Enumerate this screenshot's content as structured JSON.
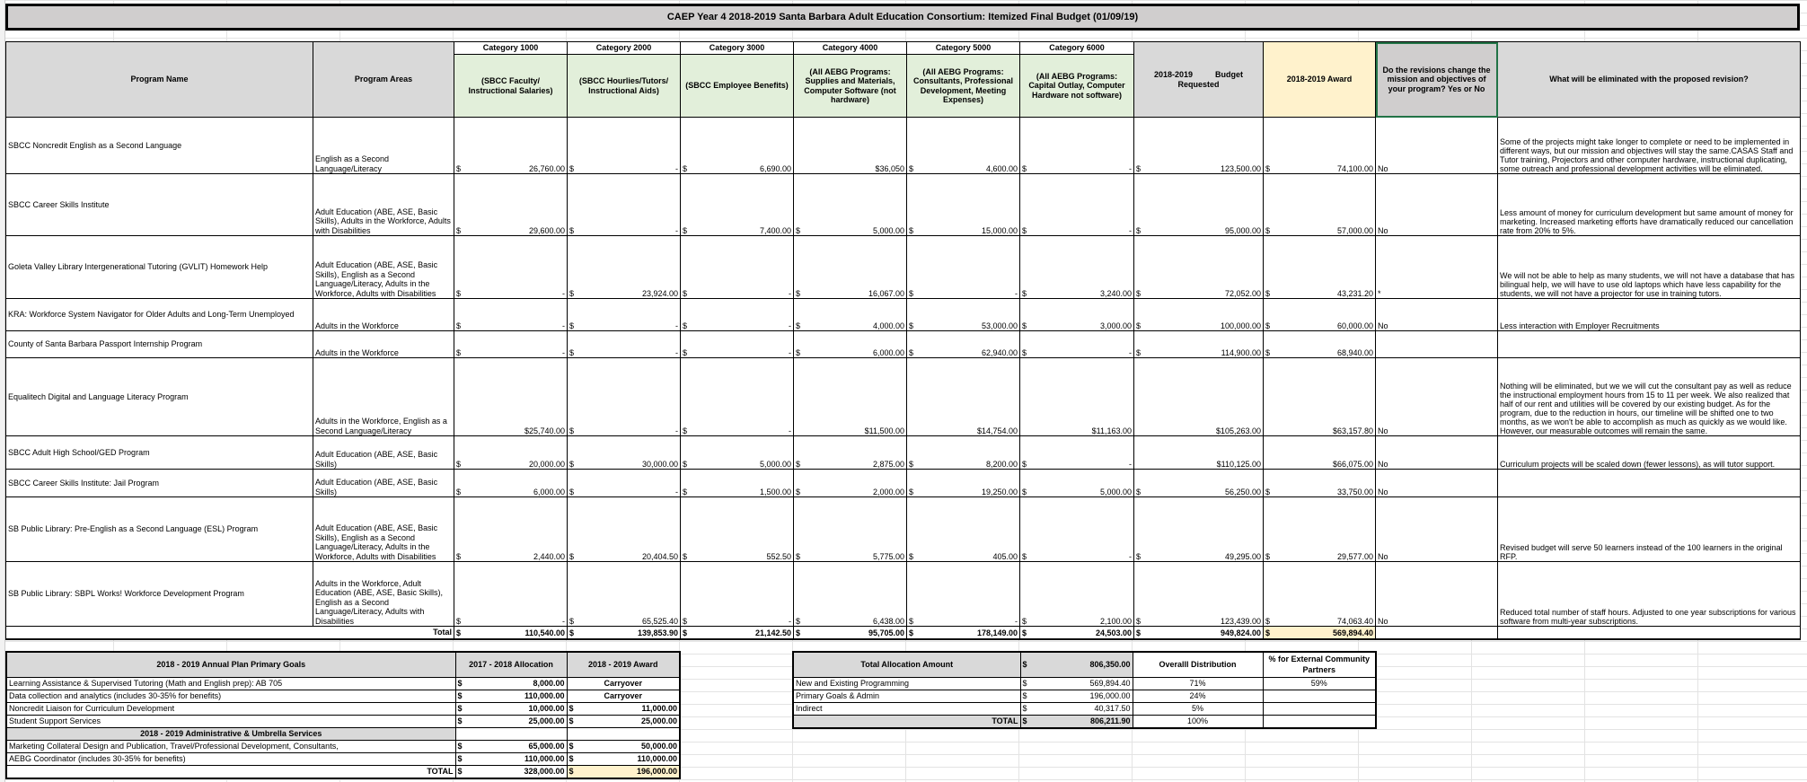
{
  "title": "CAEP Year 4  2018-2019 Santa Barbara Adult Education Consortium:  Itemized Final Budget (01/09/19)",
  "headers": {
    "program_name": "Program Name",
    "program_areas": "Program Areas",
    "categories": [
      {
        "cat": "Category 1000",
        "desc": "(SBCC Faculty/ Instructional Salaries)"
      },
      {
        "cat": "Category 2000",
        "desc": "(SBCC Hourlies/Tutors/ Instructional Aids)"
      },
      {
        "cat": "Category 3000",
        "desc": "(SBCC Employee Benefits)"
      },
      {
        "cat": "Category 4000",
        "desc": "(All AEBG Programs: Supplies and Materials, Computer Software (not hardware)"
      },
      {
        "cat": "Category 5000",
        "desc": "(All AEBG Programs: Consultants, Professional Development, Meeting Expenses)"
      },
      {
        "cat": "Category 6000",
        "desc": "(All AEBG Programs: Capital Outlay, Computer Hardware not software)"
      }
    ],
    "budget": "2018-2019          Budget Requested",
    "award": "2018-2019 Award",
    "revisions": "Do the revisions change the mission and objectives of your program? Yes or No",
    "eliminated": "What will be eliminated with the proposed revision?"
  },
  "rows": [
    {
      "name": "SBCC Noncredit English as a Second Language",
      "areas": "English as a Second Language/Literacy",
      "cells": [
        [
          "$",
          "26,760.00"
        ],
        [
          "$",
          "-"
        ],
        [
          "$",
          "6,690.00"
        ],
        [
          "",
          "$36,050"
        ],
        [
          "$",
          "4,600.00"
        ],
        [
          "$",
          "-"
        ],
        [
          "$",
          "123,500.00"
        ],
        [
          "$",
          "74,100.00"
        ]
      ],
      "rev": "No",
      "elim": "Some of the projects might take longer to complete or need to be implemented in different ways, but our mission and objectives will stay the same.CASAS Staff and Tutor training, Projectors and other computer hardware, instructional duplicating, some outreach and professional development activities will be eliminated."
    },
    {
      "name": "SBCC Career Skills Institute",
      "areas": "Adult Education (ABE, ASE, Basic Skills), Adults in the Workforce, Adults with Disabilities",
      "cells": [
        [
          "$",
          "29,600.00"
        ],
        [
          "$",
          "-"
        ],
        [
          "$",
          "7,400.00"
        ],
        [
          "$",
          "5,000.00"
        ],
        [
          "$",
          "15,000.00"
        ],
        [
          "$",
          "-"
        ],
        [
          "$",
          "95,000.00"
        ],
        [
          "$",
          "57,000.00"
        ]
      ],
      "rev": "No",
      "elim": "Less amount of money for curriculum development but same amount of money for marketing. Increased marketing efforts have dramatically reduced our cancellation rate from 20% to 5%."
    },
    {
      "name": "Goleta Valley Library Intergenerational Tutoring (GVLIT) Homework Help",
      "areas": "Adult Education (ABE, ASE, Basic Skills), English as a Second Language/Literacy, Adults in the Workforce, Adults with Disabilities",
      "cells": [
        [
          "$",
          "-"
        ],
        [
          "$",
          "23,924.00"
        ],
        [
          "$",
          "-"
        ],
        [
          "$",
          "16,067.00"
        ],
        [
          "$",
          "-"
        ],
        [
          "$",
          "3,240.00"
        ],
        [
          "$",
          "72,052.00"
        ],
        [
          "$",
          "43,231.20"
        ]
      ],
      "rev": "*",
      "elim": "We will not be able to help as many students, we will not have a database that has bilingual help, we will have to use old laptops which have less capability for the students, we will not have a projector for use in training tutors."
    },
    {
      "name": "KRA: Workforce System Navigator for Older Adults and Long-Term Unemployed",
      "areas": "Adults in the Workforce",
      "cells": [
        [
          "$",
          "-"
        ],
        [
          "$",
          "-"
        ],
        [
          "$",
          "-"
        ],
        [
          "$",
          "4,000.00"
        ],
        [
          "$",
          "53,000.00"
        ],
        [
          "$",
          "3,000.00"
        ],
        [
          "$",
          "100,000.00"
        ],
        [
          "$",
          "60,000.00"
        ]
      ],
      "rev": "No",
      "elim": "Less interaction with Employer Recruitments"
    },
    {
      "name": "County of Santa Barbara Passport Internship Program",
      "areas": "Adults in the Workforce",
      "cells": [
        [
          "$",
          "-"
        ],
        [
          "$",
          "-"
        ],
        [
          "$",
          "-"
        ],
        [
          "$",
          "6,000.00"
        ],
        [
          "$",
          "62,940.00"
        ],
        [
          "$",
          "-"
        ],
        [
          "$",
          "114,900.00"
        ],
        [
          "$",
          "68,940.00"
        ]
      ],
      "rev": "",
      "elim": ""
    },
    {
      "name": "Equalitech Digital and Language Literacy Program",
      "areas": "Adults in the Workforce, English as a Second Language/Literacy",
      "cells": [
        [
          "",
          "$25,740.00"
        ],
        [
          "$",
          "-"
        ],
        [
          "$",
          "-"
        ],
        [
          "",
          "$11,500.00"
        ],
        [
          "",
          "$14,754.00"
        ],
        [
          "",
          "$11,163.00"
        ],
        [
          "",
          "$105,263.00"
        ],
        [
          "",
          "$63,157.80"
        ]
      ],
      "rev": "No",
      "elim": "Nothing will be eliminated, but we we will cut the consultant pay as well as reduce the instructional employment hours from 15 to 11 per week. We also realized that half of our rent and utilities will be covered by our existing budget. As for the program, due to the reduction in hours, our timeline will be shifted one to two months, as we won't be able to accomplish as much as quickly as we would like. However, our measurable outcomes will remain the same."
    },
    {
      "name": "SBCC Adult High School/GED Program",
      "areas": "Adult Education (ABE, ASE, Basic Skills)",
      "cells": [
        [
          "$",
          "20,000.00"
        ],
        [
          "$",
          "30,000.00"
        ],
        [
          "$",
          "5,000.00"
        ],
        [
          "$",
          "2,875.00"
        ],
        [
          "$",
          "8,200.00"
        ],
        [
          "$",
          "-"
        ],
        [
          "",
          "$110,125.00"
        ],
        [
          "",
          "$66,075.00"
        ]
      ],
      "rev": "No",
      "elim": "Curriculum projects will be scaled down (fewer lessons), as will tutor support."
    },
    {
      "name": "SBCC Career Skills Institute: Jail Program",
      "areas": "Adult Education (ABE, ASE, Basic Skills)",
      "cells": [
        [
          "$",
          "6,000.00"
        ],
        [
          "$",
          "-"
        ],
        [
          "$",
          "1,500.00"
        ],
        [
          "$",
          "2,000.00"
        ],
        [
          "$",
          "19,250.00"
        ],
        [
          "$",
          "5,000.00"
        ],
        [
          "$",
          "56,250.00"
        ],
        [
          "$",
          "33,750.00"
        ]
      ],
      "rev": "No",
      "elim": ""
    },
    {
      "name": "SB Public Library: Pre-English as a Second Language (ESL) Program",
      "areas": "Adult Education (ABE, ASE, Basic Skills), English as a Second Language/Literacy, Adults in the Workforce, Adults with Disabilities",
      "cells": [
        [
          "$",
          "2,440.00"
        ],
        [
          "$",
          "20,404.50"
        ],
        [
          "$",
          "552.50"
        ],
        [
          "$",
          "5,775.00"
        ],
        [
          "$",
          "405.00"
        ],
        [
          "$",
          "-"
        ],
        [
          "$",
          "49,295.00"
        ],
        [
          "$",
          "29,577.00"
        ]
      ],
      "rev": "No",
      "elim": "Revised budget will serve 50 learners instead of the 100 learners in the original RFP."
    },
    {
      "name": "SB Public Library: SBPL Works! Workforce Development Program",
      "areas": "Adults in the Workforce, Adult Education (ABE, ASE, Basic Skills), English as a Second Language/Literacy, Adults with Disabilities",
      "cells": [
        [
          "$",
          "-"
        ],
        [
          "$",
          "65,525.40"
        ],
        [
          "$",
          "-"
        ],
        [
          "$",
          "6,438.00"
        ],
        [
          "$",
          "-"
        ],
        [
          "$",
          "2,100.00"
        ],
        [
          "$",
          "123,439.00"
        ],
        [
          "$",
          "74,063.40"
        ]
      ],
      "rev": "No",
      "elim": "Reduced total number of staff hours. Adjusted to one year subscriptions for various software from multi-year subscriptions."
    }
  ],
  "total": {
    "label": "Total",
    "cells": [
      [
        "$",
        "110,540.00"
      ],
      [
        "$",
        "139,853.90"
      ],
      [
        "$",
        "21,142.50"
      ],
      [
        "$",
        "95,705.00"
      ],
      [
        "$",
        "178,149.00"
      ],
      [
        "$",
        "24,503.00"
      ],
      [
        "$",
        "949,824.00"
      ],
      [
        "$",
        "569,894.40"
      ]
    ]
  },
  "goals": {
    "header": "2018 - 2019 Annual Plan Primary Goals",
    "col_alloc": "2017 - 2018 Allocation",
    "col_award": "2018 - 2019 Award",
    "items": [
      {
        "label": "Learning Assistance & Supervised Tutoring (Math and English prep): AB 705",
        "alloc": "8,000.00",
        "award_cur": "",
        "award": "Carryover"
      },
      {
        "label": "Data collection and analytics  (includes 30-35% for benefits)",
        "alloc": "110,000.00",
        "award_cur": "",
        "award": "Carryover"
      },
      {
        "label": "Noncredit Liaison for Curriculum Development",
        "alloc": "10,000.00",
        "award_cur": "$",
        "award": "11,000.00"
      },
      {
        "label": "Student Support Services",
        "alloc": "25,000.00",
        "award_cur": "$",
        "award": "25,000.00"
      }
    ],
    "admin_header": "2018 - 2019 Administrative & Umbrella Services",
    "admin_items": [
      {
        "label": "Marketing Collateral Design and Publication, Travel/Professional Development, Consultants,",
        "alloc": "65,000.00",
        "award_cur": "$",
        "award": "50,000.00"
      },
      {
        "label": "AEBG Coordinator (includes 30-35% for benefits)",
        "alloc": "110,000.00",
        "award_cur": "$",
        "award": "110,000.00"
      }
    ],
    "total_label": "TOTAL",
    "total_alloc": "328,000.00",
    "total_award": "196,000.00"
  },
  "allocation": {
    "header": "Total Allocation Amount",
    "header_amount": "806,350.00",
    "col_dist": "Overalll Distribution",
    "col_ext": "% for External Community Partners",
    "items": [
      {
        "label": "New and Existing Programming",
        "amount": "569,894.40",
        "dist": "71%",
        "ext": "59%"
      },
      {
        "label": "Primary Goals & Admin",
        "amount": "196,000.00",
        "dist": "24%",
        "ext": ""
      },
      {
        "label": "Indirect",
        "amount": "40,317.50",
        "dist": "5%",
        "ext": ""
      }
    ],
    "total_label": "TOTAL",
    "total_amount": "806,211.90",
    "total_dist": "100%"
  },
  "currency": "$",
  "colors": {
    "header_gray": "#d9d9d9",
    "category_green": "#e2efda",
    "award_yellow": "#fff2cc",
    "title_gray": "#d0cece",
    "selection_green": "#217346"
  }
}
